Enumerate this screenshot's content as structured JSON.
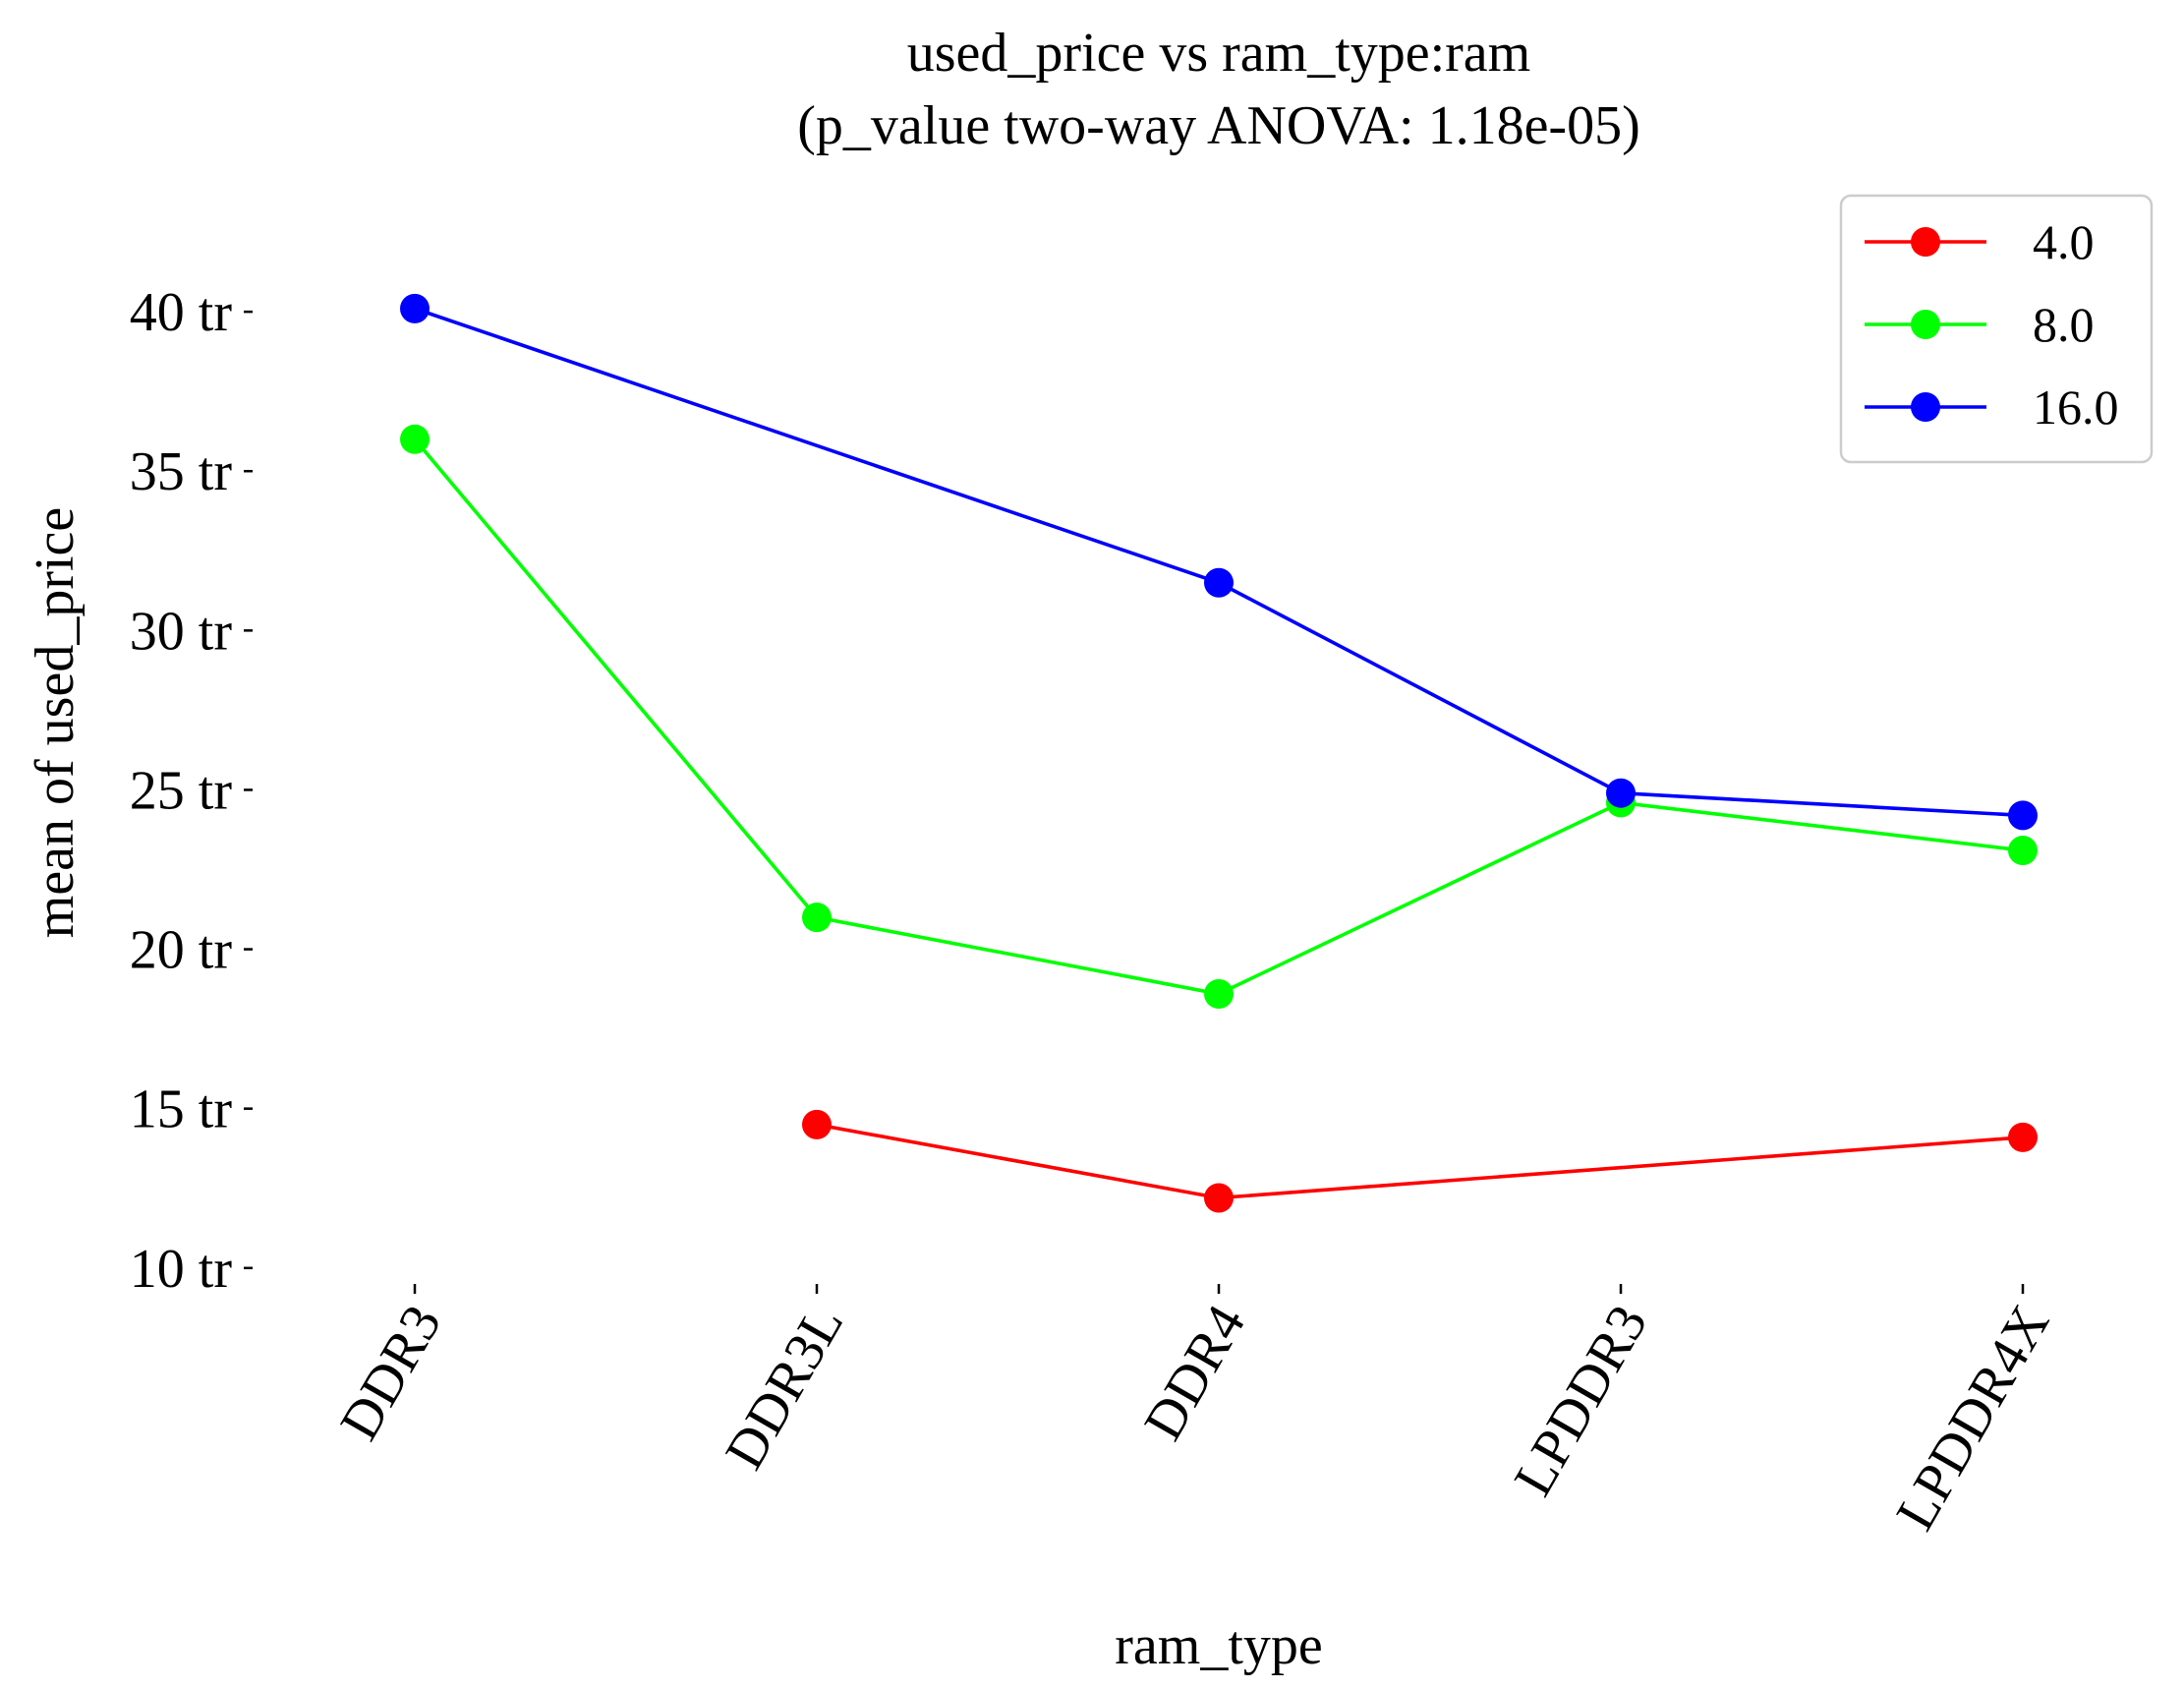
{
  "chart_data": {
    "type": "line",
    "title": [
      "used_price vs ram_type:ram",
      "(p_value two-way ANOVA: 1.18e-05)"
    ],
    "xlabel": "ram_type",
    "ylabel": "mean of used_price",
    "categories": [
      "DDR3",
      "DDR3L",
      "DDR4",
      "LPDDR3",
      "LPDDR4X"
    ],
    "yticks": [
      10,
      15,
      20,
      25,
      30,
      35,
      40
    ],
    "ytick_labels": [
      "10 tr",
      "15 tr",
      "20 tr",
      "25 tr",
      "30 tr",
      "35 tr",
      "40 tr"
    ],
    "ylim": [
      9.5,
      41.7
    ],
    "grid": false,
    "legend_position": "top-right",
    "series": [
      {
        "name": "4.0",
        "color": "#ff0000",
        "values": [
          null,
          14.5,
          12.2,
          null,
          14.1
        ]
      },
      {
        "name": "8.0",
        "color": "#00ff00",
        "values": [
          36.0,
          21.0,
          18.6,
          24.6,
          23.1
        ]
      },
      {
        "name": "16.0",
        "color": "#0000ff",
        "values": [
          40.1,
          null,
          31.5,
          24.9,
          24.2
        ]
      }
    ]
  }
}
